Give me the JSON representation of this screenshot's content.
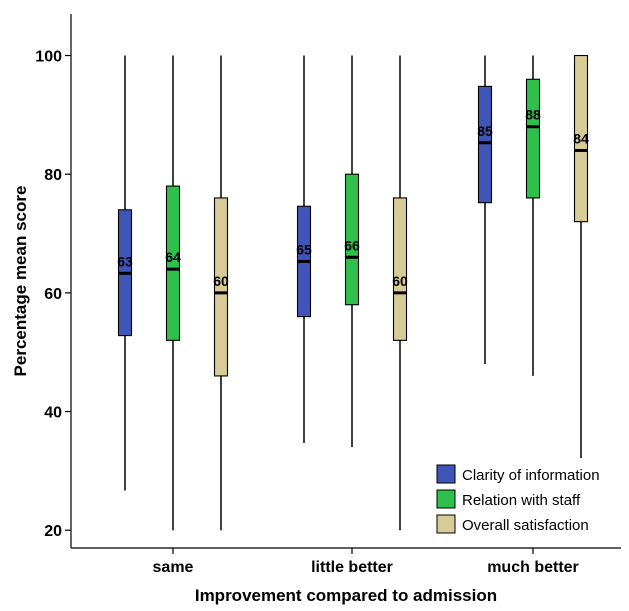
{
  "chart_data": {
    "type": "boxplot",
    "xlabel": "Improvement compared to admission",
    "ylabel": "Percentage mean score",
    "ylim": [
      17,
      107
    ],
    "yticks": [
      20,
      40,
      60,
      80,
      100
    ],
    "categories": [
      "same",
      "little better",
      "much better"
    ],
    "legend_position": "bottom-right",
    "grid": false,
    "series": [
      {
        "name": "Clarity of information",
        "color": "#4055b8",
        "boxes": [
          {
            "min": 26.7,
            "q1": 52.8,
            "median": 63.3,
            "q3": 74.0,
            "max": 100,
            "label": "63"
          },
          {
            "min": 34.7,
            "q1": 56.0,
            "median": 65.3,
            "q3": 74.6,
            "max": 100,
            "label": "65"
          },
          {
            "min": 48.0,
            "q1": 75.2,
            "median": 85.3,
            "q3": 94.8,
            "max": 100,
            "label": "85"
          }
        ]
      },
      {
        "name": "Relation with staff",
        "color": "#2fbf4b",
        "boxes": [
          {
            "min": 20.0,
            "q1": 52.0,
            "median": 64.0,
            "q3": 78.0,
            "max": 100,
            "label": "64"
          },
          {
            "min": 34.0,
            "q1": 58.0,
            "median": 66.0,
            "q3": 80.0,
            "max": 100,
            "label": "66"
          },
          {
            "min": 46.0,
            "q1": 76.0,
            "median": 88.0,
            "q3": 96.0,
            "max": 100,
            "label": "88"
          }
        ]
      },
      {
        "name": "Overall satisfaction",
        "color": "#d7cc98",
        "boxes": [
          {
            "min": 20.0,
            "q1": 46.0,
            "median": 60.0,
            "q3": 76.0,
            "max": 100,
            "label": "60"
          },
          {
            "min": 20.0,
            "q1": 52.0,
            "median": 60.0,
            "q3": 76.0,
            "max": 100,
            "label": "60"
          },
          {
            "min": 32.0,
            "q1": 72.0,
            "median": 84.0,
            "q3": 100.0,
            "max": 100,
            "label": "84"
          }
        ]
      }
    ]
  }
}
